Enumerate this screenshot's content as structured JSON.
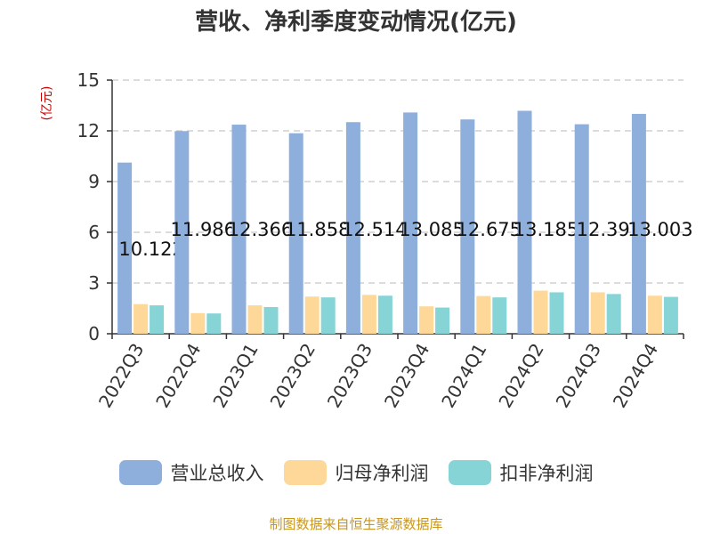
{
  "chart_data": {
    "type": "bar",
    "title": "营收、净利季度变动情况(亿元)",
    "ylabel": "(亿元)",
    "xlabel": "",
    "ylim": [
      0,
      15
    ],
    "yticks": [
      0,
      3,
      6,
      9,
      12,
      15
    ],
    "grid": true,
    "legend_position": "bottom",
    "categories": [
      "2022Q3",
      "2022Q4",
      "2023Q1",
      "2023Q2",
      "2023Q3",
      "2023Q4",
      "2024Q1",
      "2024Q2",
      "2024Q3",
      "2024Q4"
    ],
    "series": [
      {
        "name": "营业总收入",
        "color": "#8eaedc",
        "values": [
          10.122,
          11.986,
          12.366,
          11.858,
          12.514,
          13.085,
          12.675,
          13.185,
          12.39,
          13.003
        ],
        "labels": [
          "10.122",
          "11.986",
          "12.366",
          "11.858",
          "12.514",
          "13.085",
          "12.675",
          "13.185",
          "12.39",
          "13.003"
        ]
      },
      {
        "name": "归母净利润",
        "color": "#fdd898",
        "values": [
          1.75,
          1.22,
          1.68,
          2.2,
          2.3,
          1.62,
          2.23,
          2.55,
          2.45,
          2.25
        ]
      },
      {
        "name": "扣非净利润",
        "color": "#87d4d6",
        "values": [
          1.68,
          1.2,
          1.58,
          2.15,
          2.25,
          1.55,
          2.15,
          2.45,
          2.35,
          2.18
        ]
      }
    ],
    "source": "制图数据来自恒生聚源数据库"
  }
}
